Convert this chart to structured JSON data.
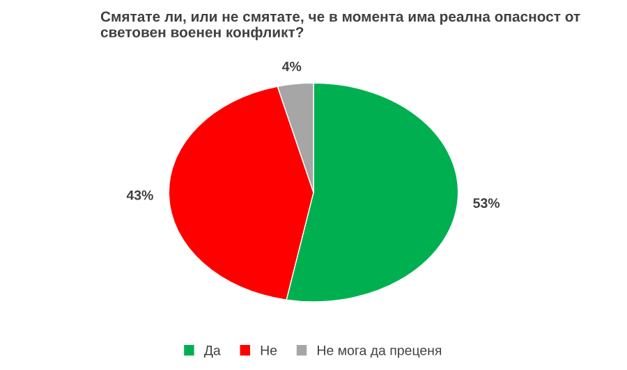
{
  "chart_data": {
    "type": "pie",
    "title": "Смятате ли, или не смятате, че в момента има реална опасност от световен военен конфликт?",
    "categories": [
      "Да",
      "Не",
      "Не мога да преценя"
    ],
    "values": [
      53,
      43,
      4
    ],
    "value_labels": [
      "53%",
      "43%",
      "4%"
    ],
    "colors": [
      "#00b050",
      "#ff0000",
      "#a6a6a6"
    ],
    "legend": "bottom"
  }
}
